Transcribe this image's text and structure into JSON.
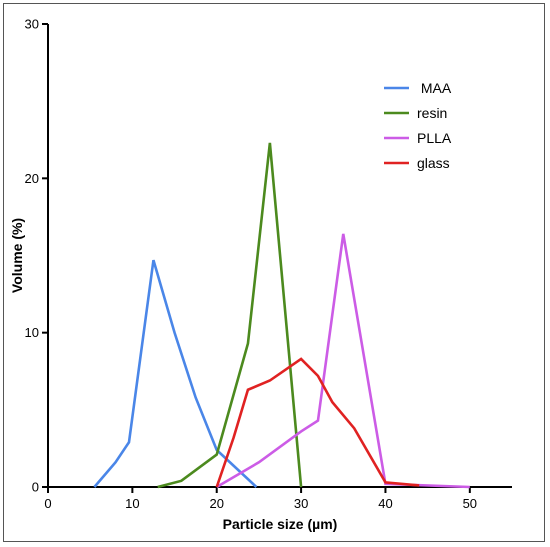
{
  "chart_data": {
    "type": "line",
    "xlabel": "Particle size (µm)",
    "ylabel": "Volume (%)",
    "xlim": [
      0,
      55
    ],
    "ylim": [
      0,
      30
    ],
    "x_ticks": [
      0,
      10,
      20,
      30,
      40,
      50
    ],
    "y_ticks": [
      0,
      10,
      20,
      30
    ],
    "x_tick_labels": [
      "0",
      "10",
      "20",
      "30",
      "40",
      "50"
    ],
    "y_tick_labels": [
      "0",
      "10",
      "20",
      "30"
    ],
    "grid": false,
    "legend_position": "top-right",
    "series": [
      {
        "name": " MAA",
        "color": "#4a86e8",
        "points": [
          [
            5.5,
            0
          ],
          [
            8,
            1.6
          ],
          [
            9.6,
            2.9
          ],
          [
            12.5,
            14.7
          ],
          [
            15,
            10
          ],
          [
            17.5,
            5.8
          ],
          [
            20,
            2.4
          ],
          [
            24.7,
            0
          ]
        ]
      },
      {
        "name": "resin",
        "color": "#4c8a1e",
        "points": [
          [
            13,
            0
          ],
          [
            15.8,
            0.4
          ],
          [
            20,
            2.1
          ],
          [
            23.7,
            9.3
          ],
          [
            26.3,
            22.3
          ],
          [
            30,
            0
          ]
        ]
      },
      {
        "name": "PLLA",
        "color": "#cc5ce6",
        "points": [
          [
            20,
            0
          ],
          [
            25,
            1.6
          ],
          [
            30,
            3.6
          ],
          [
            32,
            4.3
          ],
          [
            35,
            16.4
          ],
          [
            40,
            0.2
          ],
          [
            50,
            0
          ]
        ]
      },
      {
        "name": "glass",
        "color": "#e02222",
        "points": [
          [
            20,
            0
          ],
          [
            22,
            3.2
          ],
          [
            23.7,
            6.3
          ],
          [
            26.3,
            6.9
          ],
          [
            30,
            8.3
          ],
          [
            32,
            7.2
          ],
          [
            33.7,
            5.5
          ],
          [
            36.3,
            3.8
          ],
          [
            40,
            0.3
          ],
          [
            44,
            0.1
          ]
        ]
      }
    ]
  }
}
